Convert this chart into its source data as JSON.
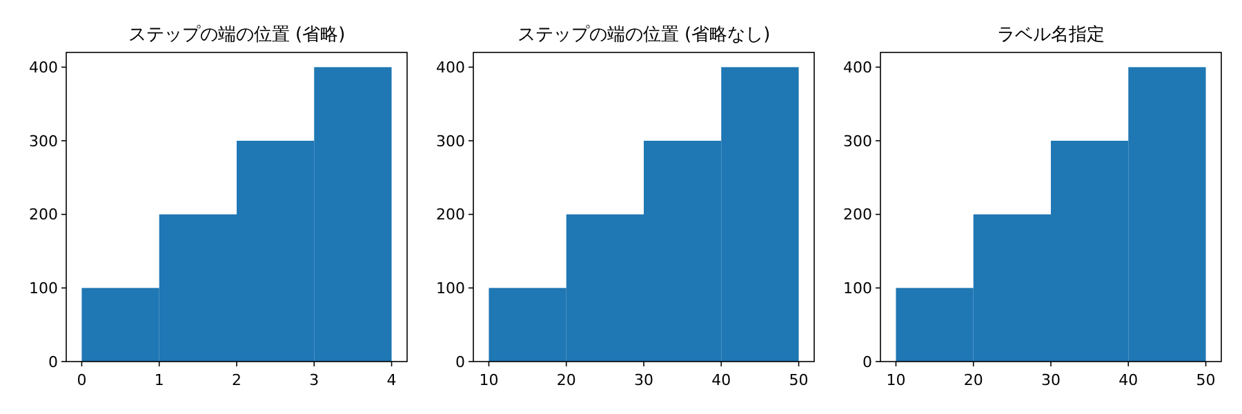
{
  "chart_data": [
    {
      "type": "histogram",
      "title": "ステップの端の位置 (省略)",
      "bins": [
        0,
        1,
        2,
        3,
        4
      ],
      "values": [
        100,
        200,
        300,
        400
      ],
      "color": "#1f77b4",
      "xlim": [
        -0.2,
        4.2
      ],
      "ylim": [
        0,
        420
      ],
      "xticks": [
        0,
        1,
        2,
        3,
        4
      ],
      "yticks": [
        0,
        100,
        200,
        300,
        400
      ]
    },
    {
      "type": "histogram",
      "title": "ステップの端の位置 (省略なし)",
      "bins": [
        10,
        20,
        30,
        40,
        50
      ],
      "values": [
        100,
        200,
        300,
        400
      ],
      "color": "#1f77b4",
      "xlim": [
        8,
        52
      ],
      "ylim": [
        0,
        420
      ],
      "xticks": [
        10,
        20,
        30,
        40,
        50
      ],
      "yticks": [
        0,
        100,
        200,
        300,
        400
      ]
    },
    {
      "type": "histogram",
      "title": "ラベル名指定",
      "bins": [
        10,
        20,
        30,
        40,
        50
      ],
      "values": [
        100,
        200,
        300,
        400
      ],
      "color": "#1f77b4",
      "xlim": [
        8,
        52
      ],
      "ylim": [
        0,
        420
      ],
      "xticks": [
        10,
        20,
        30,
        40,
        50
      ],
      "yticks": [
        0,
        100,
        200,
        300,
        400
      ]
    }
  ]
}
